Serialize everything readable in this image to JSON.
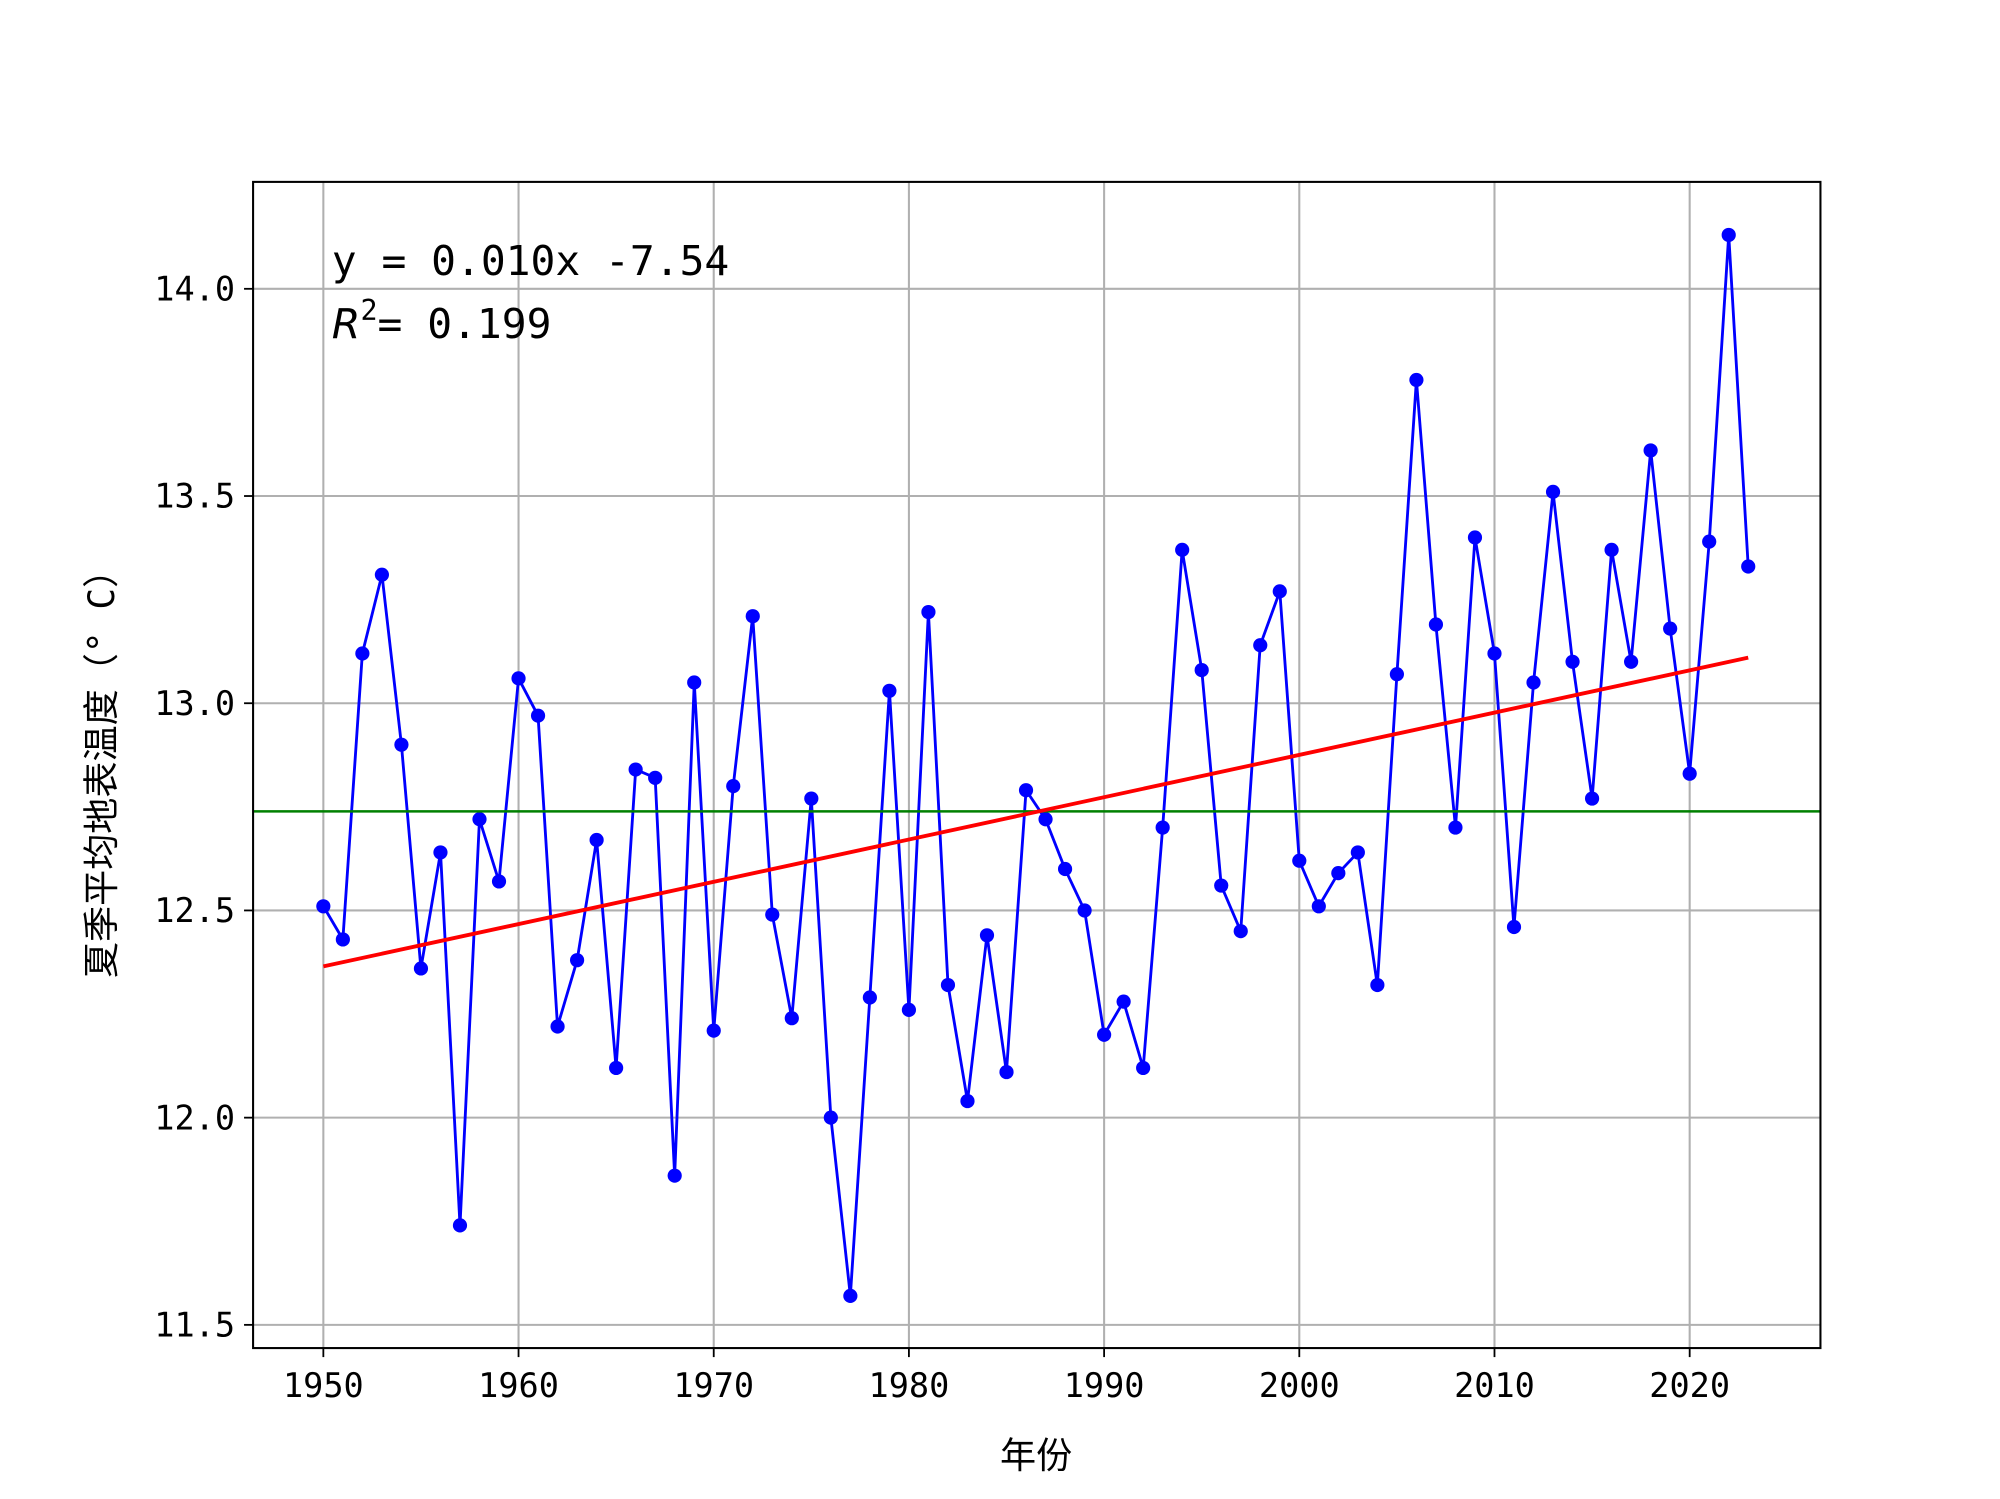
{
  "chart_data": {
    "type": "line",
    "title": "",
    "xlabel": "年份",
    "ylabel": "夏季平均地表温度（° C）",
    "xlim": [
      1946.4,
      2026.7
    ],
    "ylim": [
      11.444,
      14.258
    ],
    "grid": true,
    "xticks": [
      1950,
      1960,
      1970,
      1980,
      1990,
      2000,
      2010,
      2020
    ],
    "xtick_labels": [
      "1950",
      "1960",
      "1970",
      "1980",
      "1990",
      "2000",
      "2010",
      "2020"
    ],
    "yticks": [
      11.5,
      12.0,
      12.5,
      13.0,
      13.5,
      14.0
    ],
    "ytick_labels": [
      "11.5",
      "12.0",
      "12.5",
      "13.0",
      "13.5",
      "14.0"
    ],
    "x": [
      1950,
      1951,
      1952,
      1953,
      1954,
      1955,
      1956,
      1957,
      1958,
      1959,
      1960,
      1961,
      1962,
      1963,
      1964,
      1965,
      1966,
      1967,
      1968,
      1969,
      1970,
      1971,
      1972,
      1973,
      1974,
      1975,
      1976,
      1977,
      1978,
      1979,
      1980,
      1981,
      1982,
      1983,
      1984,
      1985,
      1986,
      1987,
      1988,
      1989,
      1990,
      1991,
      1992,
      1993,
      1994,
      1995,
      1996,
      1997,
      1998,
      1999,
      2000,
      2001,
      2002,
      2003,
      2004,
      2005,
      2006,
      2007,
      2008,
      2009,
      2010,
      2011,
      2012,
      2013,
      2014,
      2015,
      2016,
      2017,
      2018,
      2019,
      2020,
      2021,
      2022,
      2023
    ],
    "series": [
      {
        "name": "夏季平均地表温度",
        "color": "#0000ff",
        "values": [
          12.51,
          12.43,
          13.12,
          13.31,
          12.9,
          12.36,
          12.64,
          11.74,
          12.72,
          12.57,
          13.06,
          12.97,
          12.22,
          12.38,
          12.67,
          12.12,
          12.84,
          12.82,
          11.86,
          13.05,
          12.21,
          12.8,
          13.21,
          12.49,
          12.24,
          12.77,
          12.0,
          11.57,
          12.29,
          13.03,
          12.26,
          13.22,
          12.32,
          12.04,
          12.44,
          12.11,
          12.79,
          12.72,
          12.6,
          12.5,
          12.2,
          12.28,
          12.12,
          12.7,
          13.37,
          13.08,
          12.56,
          12.45,
          13.14,
          13.27,
          12.62,
          12.51,
          12.59,
          12.64,
          12.32,
          13.07,
          13.78,
          13.19,
          12.7,
          13.4,
          13.12,
          12.46,
          13.05,
          13.51,
          13.1,
          12.77,
          13.37,
          13.1,
          13.61,
          13.18,
          12.83,
          13.39,
          14.13,
          13.33
        ]
      }
    ],
    "mean_line": {
      "value": 12.739,
      "color": "#008000"
    },
    "trend_line": {
      "x": [
        1950,
        2023
      ],
      "y": [
        12.365,
        13.11
      ],
      "color": "#ff0000"
    },
    "annotation": {
      "equation": "y = 0.010x -7.54",
      "r2_symbol": "R",
      "r2_exp": "2",
      "r2_value": "= 0.199"
    }
  }
}
